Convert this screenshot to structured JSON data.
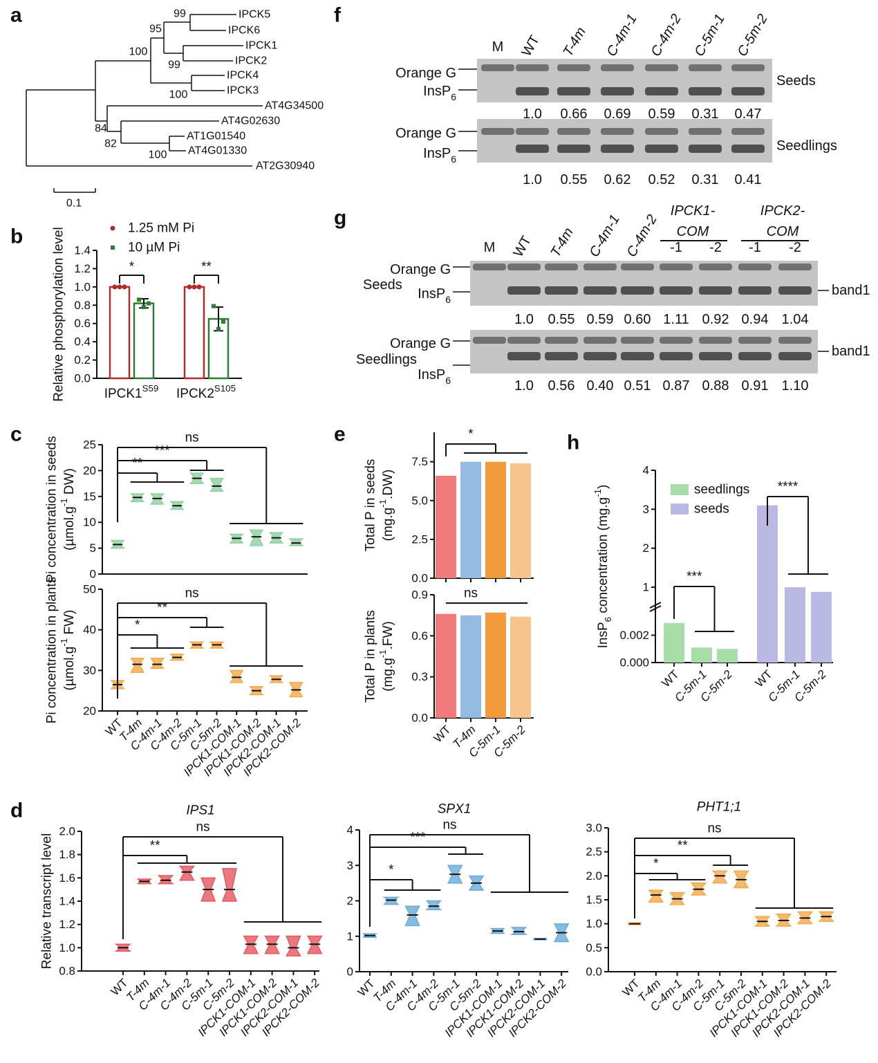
{
  "panel_labels": [
    "a",
    "b",
    "c",
    "d",
    "e",
    "f",
    "g",
    "h"
  ],
  "tree": {
    "leaves": [
      "IPCK5",
      "IPCK6",
      "IPCK1",
      "IPCK2",
      "IPCK4",
      "IPCK3",
      "AT4G34500",
      "AT4G02630",
      "AT1G01540",
      "AT4G01330",
      "AT2G30940"
    ],
    "bootstrap": [
      "99",
      "95",
      "100",
      "99",
      "100",
      "84",
      "82",
      "100"
    ],
    "scale": "0.1"
  },
  "gels": [
    {
      "lanes": [
        "M",
        "WT",
        "T-4m",
        "C-4m-1",
        "C-4m-2",
        "C-5m-1",
        "C-5m-2"
      ],
      "rows": [
        {
          "name": "Seeds",
          "markers": [
            "Orange G",
            [
              "InsP",
              {
                "sub": "6"
              }
            ]
          ],
          "values": [
            "1.0",
            "0.66",
            "0.69",
            "0.59",
            "0.31",
            "0.47"
          ]
        },
        {
          "name": "Seedlings",
          "markers": [
            "Orange G",
            [
              "InsP",
              {
                "sub": "6"
              }
            ]
          ],
          "values": [
            "1.0",
            "0.55",
            "0.62",
            "0.52",
            "0.31",
            "0.41"
          ]
        }
      ]
    },
    {
      "lanes": [
        "M",
        "WT",
        "T-4m",
        "C-4m-1",
        "C-4m-2",
        "-1",
        "-2",
        "-1",
        "-2"
      ],
      "groups": [
        [
          "IPCK1-",
          "COM"
        ],
        [
          "IPCK2-",
          "COM"
        ]
      ],
      "rows": [
        {
          "name": "Seeds",
          "markers": [
            "Orange G",
            [
              "InsP",
              {
                "sub": "6"
              }
            ]
          ],
          "band": "band1",
          "values": [
            "1.0",
            "0.55",
            "0.59",
            "0.60",
            "1.11",
            "0.92",
            "0.94",
            "1.04"
          ]
        },
        {
          "name": "Seedlings",
          "markers": [
            "Orange G",
            [
              "InsP",
              {
                "sub": "6"
              }
            ]
          ],
          "band": "band1",
          "values": [
            "1.0",
            "0.56",
            "0.40",
            "0.51",
            "0.87",
            "0.88",
            "0.91",
            "1.10"
          ]
        }
      ]
    }
  ],
  "chart_data": [
    {
      "type": "bar",
      "categories": [
        [
          "IPCK1",
          {
            "sup": "S59"
          }
        ],
        [
          "IPCK2",
          {
            "sup": "S105"
          }
        ]
      ],
      "series": [
        {
          "name": "1.25 mM Pi",
          "color": "#b22b2b",
          "values": [
            1.0,
            1.0
          ],
          "errors": [
            0,
            0
          ],
          "points": [
            [
              1,
              1,
              1
            ],
            [
              1,
              1,
              1
            ]
          ]
        },
        {
          "name": "10 µM Pi",
          "color": "#2e7d32",
          "values": [
            0.82,
            0.65
          ],
          "errors": [
            0.05,
            0.13
          ],
          "points": [
            [
              0.86,
              0.78,
              0.82
            ],
            [
              0.79,
              0.54,
              0.62
            ]
          ]
        }
      ],
      "ylabel": "Relative phosphorylation level",
      "ylim": [
        0,
        1.4
      ],
      "yticks": [
        {
          "value": 0,
          "label": "0.0"
        },
        0.2,
        0.4,
        0.6,
        0.8,
        {
          "value": 1,
          "label": "1.0"
        },
        1.2,
        1.4
      ],
      "annotations": [
        "*",
        "**"
      ],
      "legend": "top"
    },
    {
      "type": "violin",
      "values": [
        5.7,
        14.8,
        14.6,
        13.2,
        18.5,
        17.0,
        6.9,
        7.2,
        7.0,
        6.0
      ],
      "ranges": [
        [
          5,
          6.5
        ],
        [
          14,
          15.5
        ],
        [
          13.5,
          15.5
        ],
        [
          12.5,
          14
        ],
        [
          17.5,
          19.5
        ],
        [
          16,
          18.5
        ],
        [
          6,
          7.7
        ],
        [
          5.5,
          8.5
        ],
        [
          6,
          8
        ],
        [
          5.5,
          6.8
        ]
      ],
      "color": "#8fd19e",
      "ylabel": "Pi concentration in seeds",
      "ylabel_unit": [
        "(µmol.g",
        {
          "sup": "-1"
        },
        " DW)"
      ],
      "ylim": [
        0,
        25
      ],
      "yticks": [
        0,
        5,
        10,
        15,
        20,
        25
      ],
      "annotations": [
        "ns",
        "***",
        "**"
      ]
    },
    {
      "type": "violin",
      "categories": [
        "WT",
        "T-4m",
        "C-4m-1",
        "C-4m-2",
        "C-5m-1",
        "C-5m-2",
        "IPCK1-COM-1",
        "IPCK1-COM-2",
        "IPCK2-COM-1",
        "IPCK2-COM-2"
      ],
      "values": [
        26.5,
        31.5,
        31.5,
        33.2,
        36.3,
        36.3,
        28.3,
        25,
        27.8,
        25.2
      ],
      "ranges": [
        [
          25.5,
          27.5
        ],
        [
          29.5,
          33
        ],
        [
          30.5,
          33
        ],
        [
          32.5,
          34
        ],
        [
          35.5,
          37
        ],
        [
          35.5,
          37
        ],
        [
          27,
          30
        ],
        [
          24,
          26
        ],
        [
          27,
          28.7
        ],
        [
          23.5,
          27
        ]
      ],
      "color": "#f5a84a",
      "ylabel": "Pi concentration in plants",
      "ylabel_unit": [
        "(µmol.g",
        {
          "sup": "-1"
        },
        " FW)"
      ],
      "ylim": [
        20,
        50
      ],
      "yticks": [
        20,
        30,
        40,
        50
      ],
      "annotations": [
        "ns",
        "**",
        "*"
      ]
    },
    {
      "type": "bar",
      "values": [
        6.6,
        7.5,
        7.5,
        7.4
      ],
      "colors": [
        "#f07b7b",
        "#94bce3",
        "#f39a3c",
        "#f8c48d"
      ],
      "ylabel": "Total P in seeds",
      "ylabel_unit": [
        "(mg.g",
        {
          "sup": "-1"
        },
        ".DW)"
      ],
      "ylim": [
        0,
        9.4
      ],
      "yticks": [
        {
          "value": 0,
          "label": "0.0"
        },
        2.5,
        {
          "value": 5,
          "label": "5.0"
        },
        7.5
      ],
      "annotations": [
        "*"
      ]
    },
    {
      "type": "bar",
      "categories": [
        "WT",
        "T-4m",
        "C-5m-1",
        "C-5m-2"
      ],
      "values": [
        0.76,
        0.75,
        0.77,
        0.74
      ],
      "colors": [
        "#f07b7b",
        "#94bce3",
        "#f39a3c",
        "#f8c48d"
      ],
      "ylabel": "Total P in plants",
      "ylabel_unit": [
        "(mg.g",
        {
          "sup": "-1"
        },
        ".FW)"
      ],
      "ylim": [
        0,
        0.9
      ],
      "yticks": [
        {
          "value": 0,
          "label": "0.0"
        },
        0.3,
        0.6,
        0.9
      ],
      "annotations": [
        "ns"
      ]
    },
    {
      "type": "broken_bar",
      "categories": [
        "WT",
        "C-5m-1",
        "C-5m-2",
        "WT",
        "C-5m-1",
        "C-5m-2"
      ],
      "series": [
        {
          "name": "seedlings",
          "color": "#a8dca8",
          "values": [
            0.0029,
            0.0011,
            0.001,
            null,
            null,
            null
          ]
        },
        {
          "name": "seeds",
          "color": "#b9b9e3",
          "values": [
            null,
            null,
            null,
            3.1,
            1.0,
            0.88
          ]
        }
      ],
      "ylabel": [
        "InsP",
        {
          "sub": "6"
        },
        " concentration (mg.g",
        {
          "sup": "-1"
        },
        ")"
      ],
      "ylim": [
        0,
        0.0042
      ],
      "yticks": [
        {
          "value": 0,
          "label": "0.000"
        },
        {
          "value": 0.002,
          "label": "0.002"
        }
      ],
      "ylim_upper": [
        0.45,
        4
      ],
      "yticks_upper": [
        1,
        2,
        3,
        4
      ],
      "annotations": [
        "***",
        "****"
      ],
      "legend": "top-left"
    },
    {
      "type": "violin",
      "title": "IPS1",
      "categories": [
        "WT",
        "T-4m",
        "C-4m-1",
        "C-4m-2",
        "C-5m-1",
        "C-5m-2",
        "IPCK1-COM-1",
        "IPCK1-COM-2",
        "IPCK2-COM-1",
        "IPCK2-COM-2"
      ],
      "values": [
        1.0,
        1.57,
        1.58,
        1.65,
        1.5,
        1.5,
        1.03,
        1.03,
        1.0,
        1.03
      ],
      "ranges": [
        [
          0.97,
          1.03
        ],
        [
          1.55,
          1.59
        ],
        [
          1.55,
          1.62
        ],
        [
          1.58,
          1.7
        ],
        [
          1.4,
          1.6
        ],
        [
          1.4,
          1.68
        ],
        [
          0.95,
          1.1
        ],
        [
          0.95,
          1.1
        ],
        [
          0.93,
          1.1
        ],
        [
          0.95,
          1.1
        ]
      ],
      "color": "#e5575f",
      "ylabel": "Relative transcript level",
      "ylim": [
        0.8,
        2.0
      ],
      "yticks": [
        0.8,
        {
          "value": 1,
          "label": "1.0"
        },
        1.2,
        1.4,
        1.6,
        1.8,
        {
          "value": 2,
          "label": "2.0"
        }
      ],
      "annotations": [
        "ns",
        "**"
      ]
    },
    {
      "type": "violin",
      "title": "SPX1",
      "categories": [
        "WT",
        "T-4m",
        "C-4m-1",
        "C-4m-2",
        "C-5m-1",
        "C-5m-2",
        "IPCK1-COM-1",
        "IPCK1-COM-2",
        "IPCK2-COM-1",
        "IPCK2-COM-2"
      ],
      "values": [
        1.02,
        2.02,
        1.6,
        1.85,
        2.75,
        2.5,
        1.15,
        1.13,
        0.92,
        1.1
      ],
      "ranges": [
        [
          0.97,
          1.07
        ],
        [
          1.9,
          2.1
        ],
        [
          1.3,
          1.85
        ],
        [
          1.75,
          2
        ],
        [
          2.5,
          3
        ],
        [
          2.3,
          2.7
        ],
        [
          1.08,
          1.22
        ],
        [
          1.05,
          1.25
        ],
        [
          0.9,
          0.94
        ],
        [
          0.85,
          1.35
        ]
      ],
      "color": "#6aaad8",
      "ylim": [
        0,
        4
      ],
      "yticks": [
        0,
        1,
        2,
        3,
        4
      ],
      "annotations": [
        "ns",
        "***",
        "*"
      ]
    },
    {
      "type": "violin",
      "title": "PHT1;1",
      "categories": [
        "WT",
        "T-4m",
        "C-4m-1",
        "C-4m-2",
        "C-5m-1",
        "C-5m-2",
        "IPCK1-COM-1",
        "IPCK1-COM-2",
        "IPCK2-COM-1",
        "IPCK2-COM-2"
      ],
      "values": [
        1.0,
        1.6,
        1.52,
        1.72,
        2.0,
        1.92,
        1.05,
        1.07,
        1.12,
        1.15
      ],
      "ranges": [
        [
          0.98,
          1.02
        ],
        [
          1.45,
          1.7
        ],
        [
          1.4,
          1.65
        ],
        [
          1.6,
          1.85
        ],
        [
          1.85,
          2.1
        ],
        [
          1.75,
          2.1
        ],
        [
          0.95,
          1.15
        ],
        [
          0.95,
          1.2
        ],
        [
          1.0,
          1.25
        ],
        [
          1.05,
          1.25
        ]
      ],
      "color": "#f5a84a",
      "ylim": [
        0,
        3
      ],
      "yticks": [
        {
          "value": 0,
          "label": "0.0"
        },
        0.5,
        {
          "value": 1,
          "label": "1.0"
        },
        1.5,
        {
          "value": 2,
          "label": "2.0"
        },
        2.5,
        {
          "value": 3,
          "label": "3.0"
        }
      ],
      "annotations": [
        "ns",
        "**",
        "*"
      ]
    }
  ]
}
